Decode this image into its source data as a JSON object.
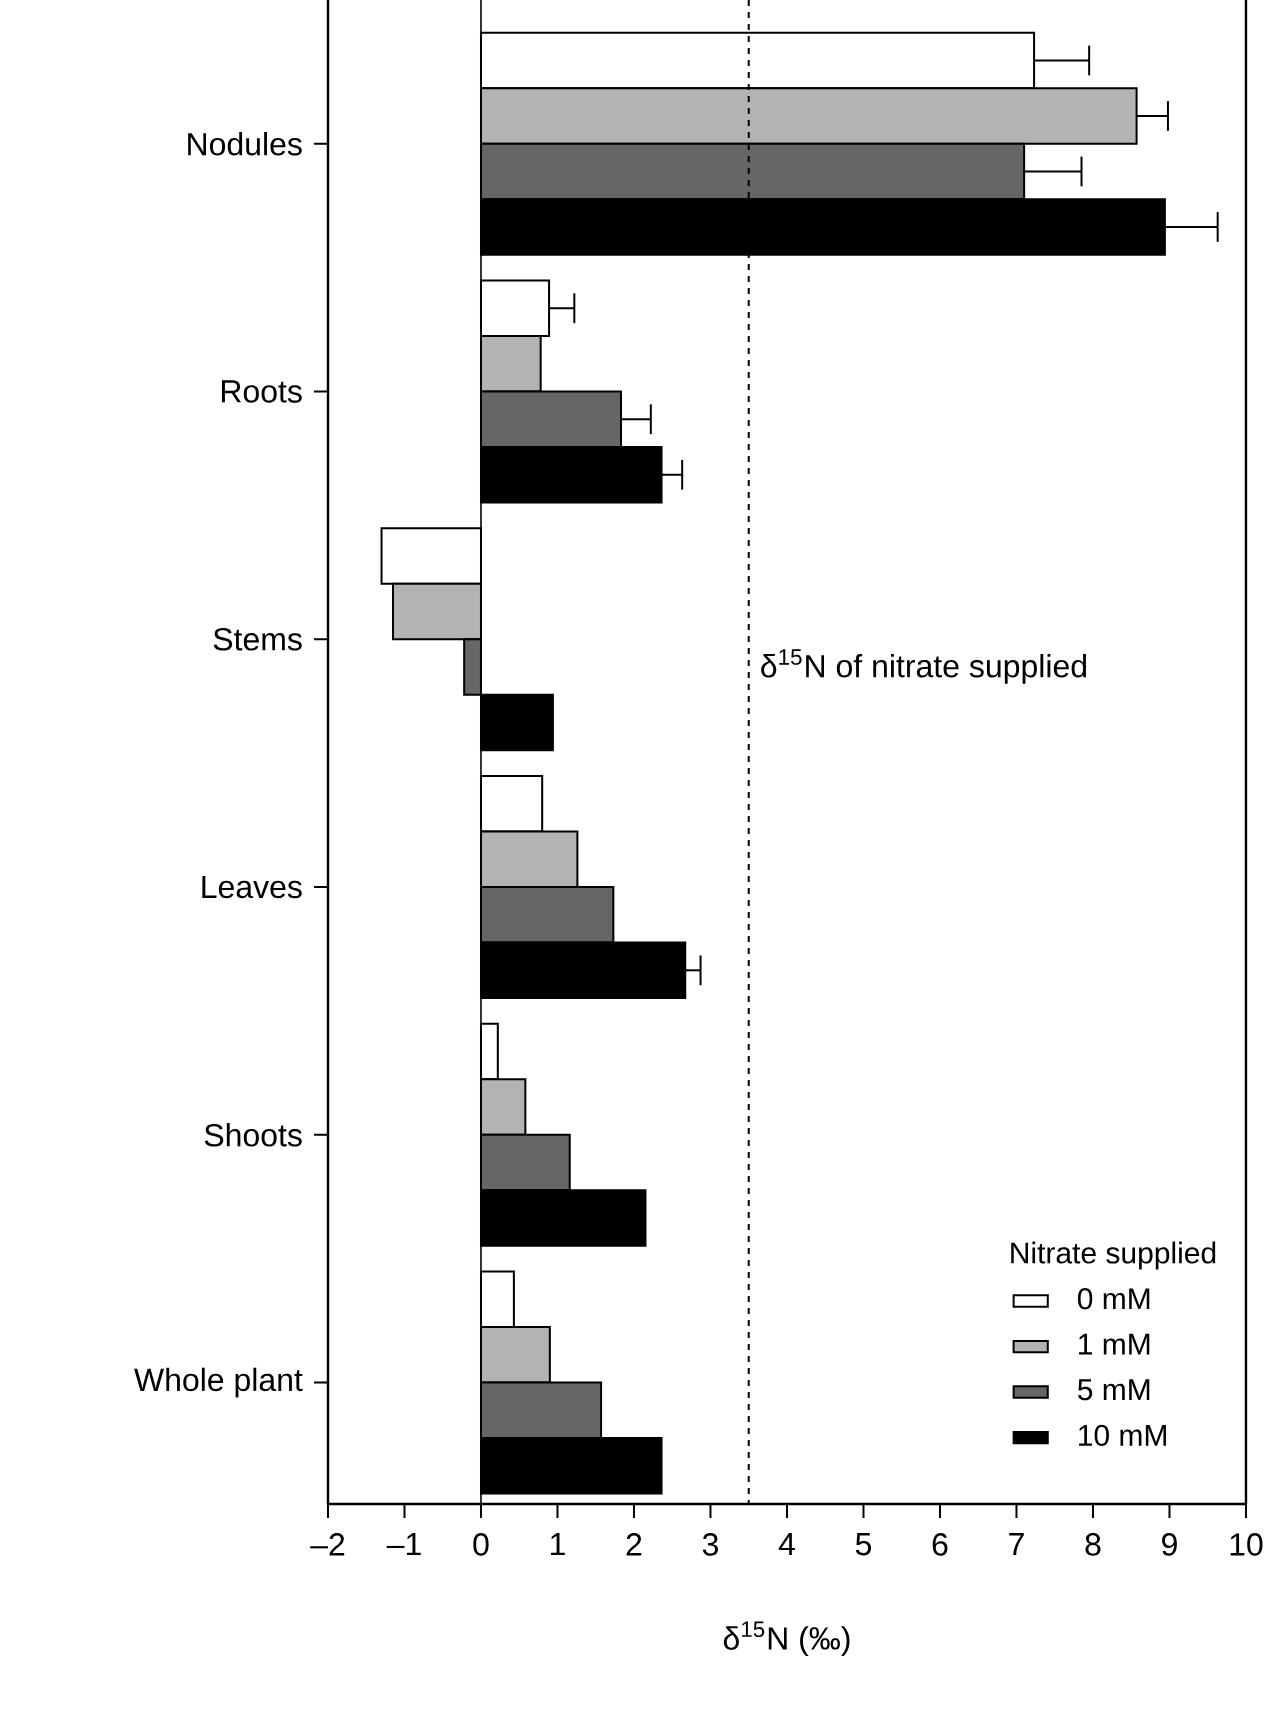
{
  "chart_data": {
    "type": "bar",
    "orientation": "horizontal",
    "xlabel": "δ$^{15}$N (‰)",
    "legend_title": "Nitrate supplied",
    "legend": "bottom right",
    "categories": [
      "Nodules",
      "Roots",
      "Stems",
      "Leaves",
      "Shoots",
      "Whole plant"
    ],
    "series": [
      {
        "name": "0 mM",
        "color": "#ffffff",
        "values": [
          7.23,
          0.89,
          -1.3,
          0.8,
          0.22,
          0.43
        ],
        "errors": [
          [
            7.23,
            7.95
          ],
          [
            0.89,
            1.22
          ],
          null,
          null,
          null,
          null
        ]
      },
      {
        "name": "1 mM",
        "color": "#b3b3b3",
        "values": [
          8.57,
          0.78,
          -1.15,
          1.26,
          0.58,
          0.9
        ],
        "errors": [
          [
            8.57,
            8.98
          ],
          null,
          null,
          null,
          null,
          null
        ]
      },
      {
        "name": "5 mM",
        "color": "#666666",
        "values": [
          7.1,
          1.83,
          -0.22,
          1.73,
          1.16,
          1.57
        ],
        "errors": [
          [
            7.1,
            7.85
          ],
          [
            1.83,
            2.22
          ],
          null,
          null,
          null,
          null
        ]
      },
      {
        "name": "10 mM",
        "color": "#000000",
        "values": [
          8.94,
          2.36,
          0.94,
          2.67,
          2.15,
          2.36
        ],
        "errors": [
          [
            8.94,
            9.63
          ],
          [
            2.36,
            2.63
          ],
          null,
          [
            2.67,
            2.87
          ],
          null,
          null
        ]
      }
    ],
    "xlim": [
      -2,
      10
    ],
    "xticks": [
      {
        "value": -2,
        "label": "–2"
      },
      {
        "value": -1,
        "label": "–1"
      },
      0,
      1,
      2,
      3,
      4,
      5,
      6,
      7,
      8,
      9,
      10
    ],
    "ref_lines": [
      {
        "axis": "x",
        "value": 3.5,
        "label": "δ$^{15}$N of nitrate supplied",
        "line_style": "dashed"
      }
    ]
  }
}
